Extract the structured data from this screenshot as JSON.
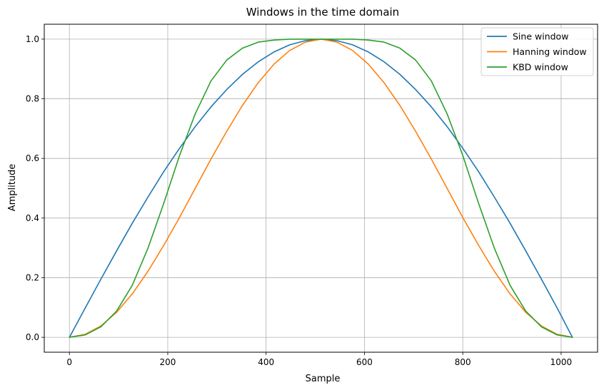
{
  "chart_data": {
    "type": "line",
    "title": "Windows in the time domain",
    "xlabel": "Sample",
    "ylabel": "Amplitude",
    "xlim": [
      -51.15,
      1074.15
    ],
    "ylim": [
      -0.05,
      1.05
    ],
    "xticks": [
      0,
      200,
      400,
      600,
      800,
      1000
    ],
    "xtick_labels": [
      "0",
      "200",
      "400",
      "600",
      "800",
      "1000"
    ],
    "yticks": [
      0.0,
      0.2,
      0.4,
      0.6,
      0.8,
      1.0
    ],
    "ytick_labels": [
      "0.0",
      "0.2",
      "0.4",
      "0.6",
      "0.8",
      "1.0"
    ],
    "grid": true,
    "legend_position": "top-right",
    "x": [
      0,
      32,
      64,
      96,
      128,
      160,
      192,
      224,
      256,
      288,
      320,
      352,
      384,
      416,
      448,
      480,
      512,
      544,
      576,
      608,
      640,
      672,
      704,
      736,
      768,
      800,
      832,
      864,
      896,
      928,
      960,
      992,
      1023
    ],
    "series": [
      {
        "name": "Sine window",
        "color": "#1f77b4",
        "values": [
          0.0,
          0.098,
          0.195,
          0.29,
          0.383,
          0.471,
          0.556,
          0.634,
          0.707,
          0.773,
          0.831,
          0.882,
          0.924,
          0.957,
          0.981,
          0.995,
          1.0,
          0.995,
          0.981,
          0.957,
          0.924,
          0.882,
          0.831,
          0.773,
          0.707,
          0.634,
          0.556,
          0.471,
          0.383,
          0.29,
          0.195,
          0.098,
          0.0
        ]
      },
      {
        "name": "Hanning window",
        "color": "#ff7f0e",
        "values": [
          0.0,
          0.01,
          0.038,
          0.084,
          0.146,
          0.222,
          0.309,
          0.402,
          0.5,
          0.598,
          0.691,
          0.778,
          0.854,
          0.916,
          0.962,
          0.99,
          1.0,
          0.99,
          0.962,
          0.916,
          0.854,
          0.778,
          0.691,
          0.598,
          0.5,
          0.402,
          0.309,
          0.222,
          0.146,
          0.084,
          0.038,
          0.01,
          0.0
        ]
      },
      {
        "name": "KBD window",
        "color": "#2ca02c",
        "values": [
          0.0,
          0.008,
          0.035,
          0.088,
          0.175,
          0.3,
          0.45,
          0.61,
          0.75,
          0.86,
          0.93,
          0.97,
          0.99,
          0.997,
          1.0,
          1.0,
          1.0,
          1.0,
          1.0,
          0.997,
          0.99,
          0.97,
          0.93,
          0.86,
          0.75,
          0.61,
          0.45,
          0.3,
          0.175,
          0.088,
          0.035,
          0.008,
          0.0
        ]
      }
    ]
  }
}
